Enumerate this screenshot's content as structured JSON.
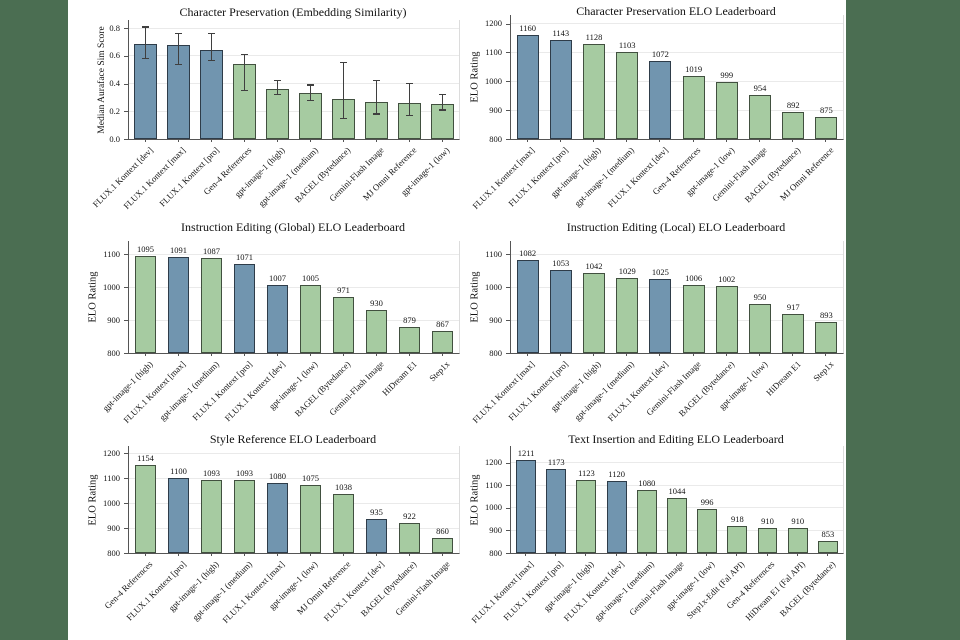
{
  "figure": {
    "background_color": "#4b6e52",
    "panel_color": "#ffffff"
  },
  "palette": {
    "blue_fill": "#7195af",
    "blue_edge": "#2e3c49",
    "green_fill": "#a6cba1",
    "green_edge": "#41503f",
    "axis_color": "#555555",
    "grid_color": "#eaeaea",
    "error_color": "#3f3f3f",
    "text_color": "#141414"
  },
  "chart_data": [
    {
      "type": "bar",
      "title": "Character Preservation (Embedding Similarity)",
      "xlabel": "",
      "ylabel": "Median Auraface Sim Score",
      "categories": [
        "FLUX.1 Kontext [dev]",
        "FLUX.1 Kontext [max]",
        "FLUX.1 Kontext [pro]",
        "Gen-4 References",
        "gpt-image-1 (high)",
        "gpt-image-1 (medium)",
        "BAGEL (Bytedance)",
        "Gemini-Flash Image",
        "MJ Omni Reference",
        "gpt-image-1 (low)"
      ],
      "values": [
        0.69,
        0.68,
        0.64,
        0.54,
        0.36,
        0.33,
        0.29,
        0.27,
        0.26,
        0.25
      ],
      "error_lo": [
        0.58,
        0.54,
        0.57,
        0.35,
        0.32,
        0.28,
        0.15,
        0.18,
        0.17,
        0.21
      ],
      "error_hi": [
        0.81,
        0.76,
        0.76,
        0.61,
        0.42,
        0.39,
        0.55,
        0.42,
        0.4,
        0.32
      ],
      "colors": [
        "blue",
        "blue",
        "blue",
        "green",
        "green",
        "green",
        "green",
        "green",
        "green",
        "green"
      ],
      "ylim": [
        0,
        0.86
      ],
      "yticks": [
        0,
        0.2,
        0.4,
        0.6,
        0.8
      ],
      "ytick_labels": [
        "0.0",
        "0.2",
        "0.4",
        "0.6",
        "0.8"
      ],
      "show_values": false,
      "grid": true,
      "legend": "none"
    },
    {
      "type": "bar",
      "title": "Character Preservation ELO Leaderboard",
      "xlabel": "",
      "ylabel": "ELO Rating",
      "categories": [
        "FLUX.1 Kontext [max]",
        "FLUX.1 Kontext [pro]",
        "gpt-image-1 (high)",
        "gpt-image-1 (medium)",
        "FLUX.1 Kontext [dev]",
        "Gen-4 References",
        "gpt-image-1 (low)",
        "Gemini-Flash Image",
        "BAGEL (Bytedance)",
        "MJ Omni Reference"
      ],
      "values": [
        1160,
        1143,
        1128,
        1103,
        1072,
        1019,
        999,
        954,
        892,
        875
      ],
      "colors": [
        "blue",
        "blue",
        "green",
        "green",
        "blue",
        "green",
        "green",
        "green",
        "green",
        "green"
      ],
      "ylim": [
        800,
        1230
      ],
      "yticks": [
        800,
        900,
        1000,
        1100,
        1200
      ],
      "ytick_labels": [
        "800",
        "900",
        "1000",
        "1100",
        "1200"
      ],
      "show_values": true,
      "grid": true,
      "legend": "none"
    },
    {
      "type": "bar",
      "title": "Instruction Editing (Global) ELO Leaderboard",
      "xlabel": "",
      "ylabel": "ELO Rating",
      "categories": [
        "gpt-image-1 (high)",
        "FLUX.1 Kontext [max]",
        "gpt-image-1 (medium)",
        "FLUX.1 Kontext [pro]",
        "FLUX.1 Kontext [dev]",
        "gpt-image-1 (low)",
        "BAGEL (Bytedance)",
        "Gemini-Flash Image",
        "HiDream E1",
        "Step1x"
      ],
      "values": [
        1095,
        1091,
        1087,
        1071,
        1007,
        1005,
        971,
        930,
        879,
        867
      ],
      "colors": [
        "green",
        "blue",
        "green",
        "blue",
        "blue",
        "green",
        "green",
        "green",
        "green",
        "green"
      ],
      "ylim": [
        800,
        1140
      ],
      "yticks": [
        800,
        900,
        1000,
        1100
      ],
      "ytick_labels": [
        "800",
        "900",
        "1000",
        "1100"
      ],
      "show_values": true,
      "grid": true,
      "legend": "none"
    },
    {
      "type": "bar",
      "title": "Instruction Editing (Local) ELO Leaderboard",
      "xlabel": "",
      "ylabel": "ELO Rating",
      "categories": [
        "FLUX.1 Kontext [max]",
        "FLUX.1 Kontext [pro]",
        "gpt-image-1 (high)",
        "gpt-image-1 (medium)",
        "FLUX.1 Kontext [dev]",
        "Gemini-Flash Image",
        "BAGEL (Bytedance)",
        "gpt-image-1 (low)",
        "HiDream E1",
        "Step1x"
      ],
      "values": [
        1082,
        1053,
        1042,
        1029,
        1025,
        1006,
        1002,
        950,
        917,
        893
      ],
      "colors": [
        "blue",
        "blue",
        "green",
        "green",
        "blue",
        "green",
        "green",
        "green",
        "green",
        "green"
      ],
      "ylim": [
        800,
        1140
      ],
      "yticks": [
        800,
        900,
        1000,
        1100
      ],
      "ytick_labels": [
        "800",
        "900",
        "1000",
        "1100"
      ],
      "show_values": true,
      "grid": true,
      "legend": "none"
    },
    {
      "type": "bar",
      "title": "Style Reference ELO Leaderboard",
      "xlabel": "",
      "ylabel": "ELO Rating",
      "categories": [
        "Gen-4 References",
        "FLUX.1 Kontext [pro]",
        "gpt-image-1 (high)",
        "gpt-image-1 (medium)",
        "FLUX.1 Kontext [max]",
        "gpt-image-1 (low)",
        "MJ Omni Reference",
        "FLUX.1 Kontext [dev]",
        "BAGEL (Bytedance)",
        "Gemini-Flash Image"
      ],
      "values": [
        1154,
        1100,
        1093,
        1093,
        1080,
        1075,
        1038,
        935,
        922,
        860
      ],
      "colors": [
        "green",
        "blue",
        "green",
        "green",
        "blue",
        "green",
        "green",
        "blue",
        "green",
        "green"
      ],
      "ylim": [
        800,
        1230
      ],
      "yticks": [
        800,
        900,
        1000,
        1100,
        1200
      ],
      "ytick_labels": [
        "800",
        "900",
        "1000",
        "1100",
        "1200"
      ],
      "show_values": true,
      "grid": true,
      "legend": "none"
    },
    {
      "type": "bar",
      "title": "Text Insertion and Editing ELO Leaderboard",
      "xlabel": "",
      "ylabel": "ELO Rating",
      "categories": [
        "FLUX.1 Kontext [max]",
        "FLUX.1 Kontext [pro]",
        "gpt-image-1 (high)",
        "FLUX.1 Kontext [dev]",
        "gpt-image-1 (medium)",
        "Gemini-Flash Image",
        "gpt-image-1 (low)",
        "Step1x-Edit (Fal API)",
        "Gen-4 References",
        "HiDream E1 (Fal API)",
        "BAGEL (Bytedance)"
      ],
      "values": [
        1211,
        1173,
        1123,
        1120,
        1080,
        1044,
        996,
        918,
        910,
        910,
        853
      ],
      "colors": [
        "blue",
        "blue",
        "green",
        "blue",
        "green",
        "green",
        "green",
        "green",
        "green",
        "green",
        "green"
      ],
      "ylim": [
        800,
        1275
      ],
      "yticks": [
        800,
        900,
        1000,
        1100,
        1200
      ],
      "ytick_labels": [
        "800",
        "900",
        "1000",
        "1100",
        "1200"
      ],
      "show_values": true,
      "grid": true,
      "legend": "none"
    }
  ]
}
